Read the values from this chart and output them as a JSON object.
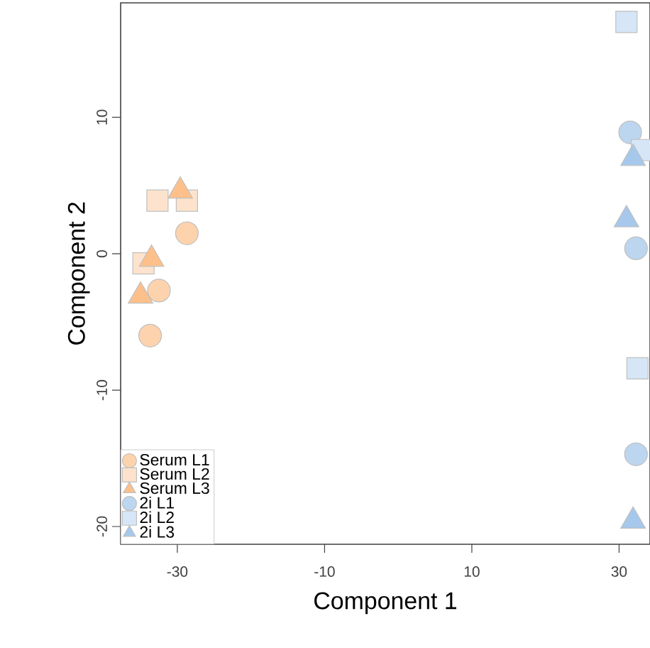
{
  "chart_data": {
    "type": "scatter",
    "xlabel": "Component 1",
    "ylabel": "Component 2",
    "xlim": [
      -37.7,
      34.2
    ],
    "ylim": [
      -21.3,
      18.4
    ],
    "xticks": [
      -30,
      -10,
      10,
      30
    ],
    "yticks": [
      -20,
      -10,
      0,
      10
    ],
    "grid": false,
    "legend": "bottom left",
    "series": [
      {
        "name": "Serum L1",
        "color": "#fdd3ad",
        "marker": "circle",
        "x": [
          -28.7,
          -32.5,
          -33.7
        ],
        "values": [
          1.5,
          -2.7,
          -6.0
        ]
      },
      {
        "name": "Serum L2",
        "color": "#fde3cd",
        "marker": "square",
        "x": [
          -32.7,
          -28.7,
          -34.6
        ],
        "values": [
          3.9,
          3.9,
          -0.7
        ]
      },
      {
        "name": "Serum L3",
        "color": "#fdc08a",
        "marker": "triangle",
        "x": [
          -29.6,
          -33.5,
          -35.0
        ],
        "values": [
          4.6,
          -0.4,
          -3.1
        ]
      },
      {
        "name": "2i L1",
        "color": "#bcd6f0",
        "marker": "circle",
        "x": [
          31.5,
          32.3,
          32.3
        ],
        "values": [
          8.9,
          0.4,
          -14.7
        ]
      },
      {
        "name": "2i L2",
        "color": "#d6e6f6",
        "marker": "square",
        "x": [
          31.0,
          33.1,
          32.5
        ],
        "values": [
          17.0,
          7.6,
          -8.4
        ]
      },
      {
        "name": "2i L3",
        "color": "#a6c8ec",
        "marker": "triangle",
        "x": [
          31.9,
          31.0,
          31.9
        ],
        "values": [
          7.0,
          2.5,
          -19.6
        ]
      }
    ]
  }
}
